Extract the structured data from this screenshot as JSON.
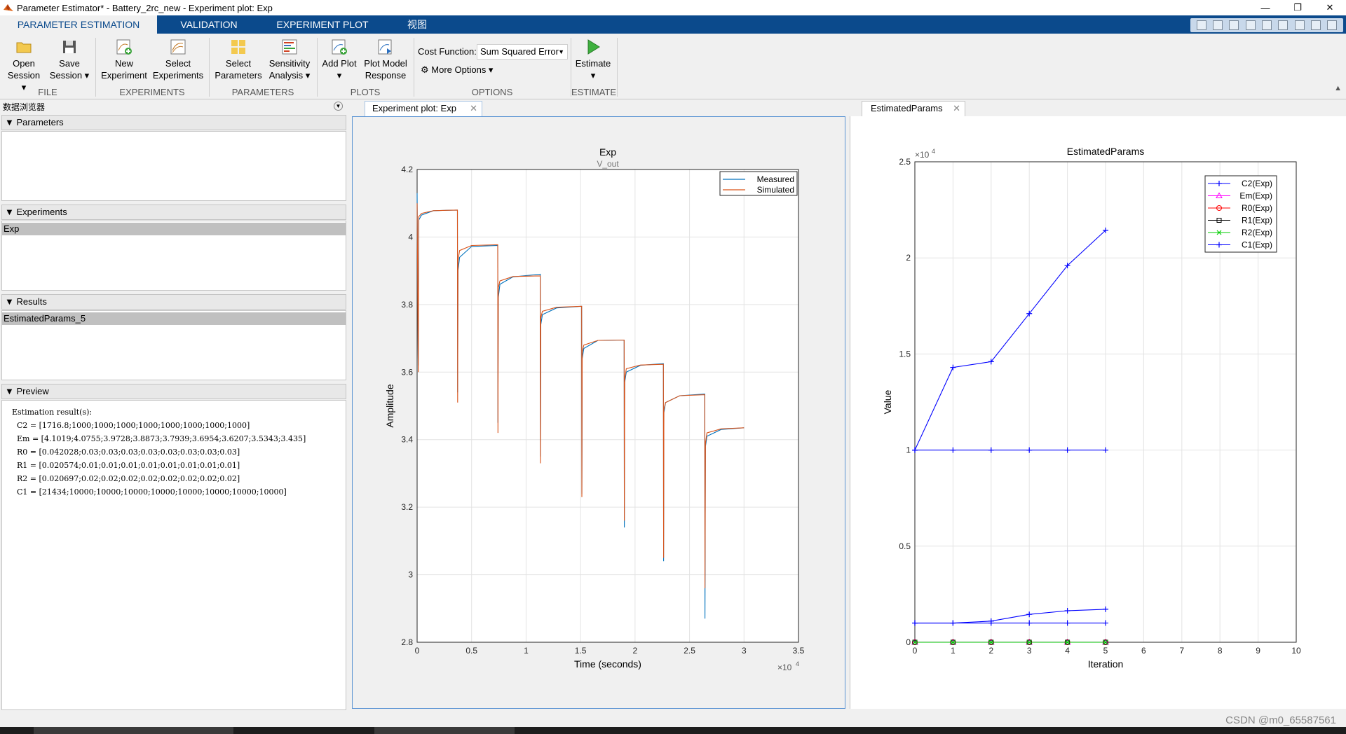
{
  "window": {
    "title": "Parameter Estimator* - Battery_2rc_new - Experiment plot: Exp",
    "minimize": "—",
    "maximize": "❐",
    "close": "✕"
  },
  "tabs": [
    "PARAMETER ESTIMATION",
    "VALIDATION",
    "EXPERIMENT PLOT",
    "视图"
  ],
  "ribbon": {
    "open": [
      "Open",
      "Session ▾"
    ],
    "save": [
      "Save",
      "Session ▾"
    ],
    "new_exp": [
      "New",
      "Experiment"
    ],
    "select_exp": [
      "Select",
      "Experiments"
    ],
    "select_params": [
      "Select",
      "Parameters"
    ],
    "sensitivity": [
      "Sensitivity",
      "Analysis ▾"
    ],
    "add_plot": [
      "Add Plot",
      "▾"
    ],
    "plot_model": [
      "Plot Model",
      "Response"
    ],
    "cost_label": "Cost Function:",
    "cost_value": "Sum Squared Error",
    "more_options": "More Options ▾",
    "estimate": [
      "Estimate",
      "▾"
    ],
    "groups": [
      "FILE",
      "EXPERIMENTS",
      "PARAMETERS",
      "PLOTS",
      "OPTIONS",
      "ESTIMATE"
    ]
  },
  "browser": {
    "title": "数据浏览器",
    "parameters_header": "Parameters",
    "experiments_header": "Experiments",
    "experiments": [
      "Exp"
    ],
    "results_header": "Results",
    "results": [
      "EstimatedParams_5"
    ],
    "preview_header": "Preview",
    "preview_lines": [
      "Estimation result(s):",
      "  C2 = [1716.8;1000;1000;1000;1000;1000;1000;1000;1000]",
      "  Em = [4.1019;4.0755;3.9728;3.8873;3.7939;3.6954;3.6207;3.5343;3.435]",
      "  R0 = [0.042028;0.03;0.03;0.03;0.03;0.03;0.03;0.03;0.03]",
      "  R1 = [0.020574;0.01;0.01;0.01;0.01;0.01;0.01;0.01;0.01]",
      "  R2 = [0.020697;0.02;0.02;0.02;0.02;0.02;0.02;0.02;0.02]",
      "  C1 = [21434;10000;10000;10000;10000;10000;10000;10000;10000]"
    ]
  },
  "doc_tabs": {
    "center": "Experiment plot: Exp",
    "right": "EstimatedParams",
    "close": "✕"
  },
  "chart_data": [
    {
      "type": "line",
      "title": "Exp",
      "subtitle": "V_out",
      "xlabel": "Time (seconds)",
      "ylabel": "Amplitude",
      "x_exponent": "×10",
      "x_exponent_power": "4",
      "xlim": [
        0,
        35000
      ],
      "ylim": [
        2.8,
        4.2
      ],
      "xticks": [
        0,
        5000,
        10000,
        15000,
        20000,
        25000,
        30000,
        35000
      ],
      "xtick_labels": [
        "0",
        "0.5",
        "1",
        "1.5",
        "2",
        "2.5",
        "3",
        "3.5"
      ],
      "yticks": [
        2.8,
        3.0,
        3.2,
        3.4,
        3.6,
        3.8,
        4.0,
        4.2
      ],
      "ytick_labels": [
        "2.8",
        "3",
        "3.2",
        "3.4",
        "3.6",
        "3.8",
        "4",
        "4.2"
      ],
      "grid": true,
      "legend_position": "top-right",
      "colors": {
        "Measured": "#0072bd",
        "Simulated": "#d95319"
      },
      "series": [
        {
          "name": "Measured",
          "x": [
            0,
            100,
            150,
            400,
            1500,
            3700,
            3720,
            3750,
            3900,
            5000,
            7400,
            7420,
            7450,
            7600,
            8800,
            11300,
            11320,
            11350,
            11500,
            12800,
            15100,
            15120,
            15150,
            15300,
            16600,
            19000,
            19020,
            19050,
            19200,
            20500,
            22600,
            22620,
            22650,
            22800,
            24100,
            26400,
            26420,
            26460,
            26600,
            27900,
            30000
          ],
          "y": [
            4.13,
            3.62,
            4.05,
            4.065,
            4.078,
            4.08,
            3.54,
            3.9,
            3.94,
            3.972,
            3.975,
            3.45,
            3.82,
            3.86,
            3.882,
            3.89,
            3.35,
            3.74,
            3.77,
            3.79,
            3.795,
            3.24,
            3.64,
            3.67,
            3.694,
            3.695,
            3.14,
            3.57,
            3.6,
            3.62,
            3.625,
            3.04,
            3.48,
            3.51,
            3.53,
            3.535,
            2.87,
            3.38,
            3.41,
            3.43,
            3.435
          ]
        },
        {
          "name": "Simulated",
          "x": [
            0,
            100,
            150,
            400,
            1500,
            3700,
            3720,
            3750,
            3900,
            5000,
            7400,
            7420,
            7450,
            7600,
            8800,
            11300,
            11320,
            11350,
            11500,
            12800,
            15100,
            15120,
            15150,
            15300,
            16600,
            19000,
            19020,
            19050,
            19200,
            20500,
            22600,
            22620,
            22650,
            22800,
            24100,
            26400,
            26420,
            26460,
            26600,
            27900,
            30000
          ],
          "y": [
            4.1,
            3.6,
            4.06,
            4.07,
            4.078,
            4.08,
            3.51,
            3.93,
            3.96,
            3.975,
            3.977,
            3.42,
            3.85,
            3.87,
            3.883,
            3.885,
            3.33,
            3.76,
            3.78,
            3.792,
            3.795,
            3.23,
            3.66,
            3.68,
            3.694,
            3.695,
            3.16,
            3.58,
            3.61,
            3.621,
            3.623,
            3.05,
            3.49,
            3.51,
            3.53,
            3.533,
            2.96,
            3.39,
            3.42,
            3.432,
            3.435
          ]
        }
      ]
    },
    {
      "type": "line",
      "title": "EstimatedParams",
      "xlabel": "Iteration",
      "ylabel": "Value",
      "y_exponent": "×10",
      "y_exponent_power": "4",
      "xlim": [
        0,
        10
      ],
      "ylim": [
        0,
        25000
      ],
      "xticks": [
        0,
        1,
        2,
        3,
        4,
        5,
        6,
        7,
        8,
        9,
        10
      ],
      "xtick_labels": [
        "0",
        "1",
        "2",
        "3",
        "4",
        "5",
        "6",
        "7",
        "8",
        "9",
        "10"
      ],
      "yticks": [
        0,
        5000,
        10000,
        15000,
        20000,
        25000
      ],
      "ytick_labels": [
        "0",
        "0.5",
        "1",
        "1.5",
        "2",
        "2.5"
      ],
      "grid": true,
      "legend_position": "top-right",
      "series": [
        {
          "name": "C2(Exp)",
          "color": "#0000ff",
          "marker": "+",
          "x": [
            0,
            1,
            2,
            3,
            4,
            5
          ],
          "y": [
            1000,
            1000,
            1100,
            1450,
            1640,
            1717
          ]
        },
        {
          "name": "Em(Exp)",
          "color": "#ff00ff",
          "marker": "triangle",
          "x": [
            0,
            1,
            2,
            3,
            4,
            5
          ],
          "y": [
            4.1,
            4.1,
            4.1,
            4.1,
            4.1,
            4.1
          ]
        },
        {
          "name": "R0(Exp)",
          "color": "#ff0000",
          "marker": "circle",
          "x": [
            0,
            1,
            2,
            3,
            4,
            5
          ],
          "y": [
            0.03,
            0.03,
            0.035,
            0.04,
            0.042,
            0.042
          ]
        },
        {
          "name": "R1(Exp)",
          "color": "#000000",
          "marker": "square",
          "x": [
            0,
            1,
            2,
            3,
            4,
            5
          ],
          "y": [
            0.01,
            0.01,
            0.015,
            0.02,
            0.02,
            0.0206
          ]
        },
        {
          "name": "R2(Exp)",
          "color": "#00cc00",
          "marker": "x",
          "x": [
            0,
            1,
            2,
            3,
            4,
            5
          ],
          "y": [
            0.02,
            0.02,
            0.02,
            0.02,
            0.02,
            0.0207
          ]
        },
        {
          "name": "C1(Exp)",
          "color": "#0000ff",
          "marker": "+",
          "x": [
            0,
            1,
            2,
            3,
            4,
            5
          ],
          "y": [
            10000,
            14300,
            14600,
            17100,
            19600,
            21434
          ]
        },
        {
          "name": "",
          "color": "#0000ff",
          "marker": "+",
          "x": [
            0,
            1,
            2,
            3,
            4,
            5
          ],
          "y": [
            10000,
            10000,
            10000,
            10000,
            10000,
            10000
          ]
        },
        {
          "name": "",
          "color": "#0000ff",
          "marker": "+",
          "x": [
            0,
            1,
            2,
            3,
            4,
            5
          ],
          "y": [
            1000,
            1000,
            1000,
            1000,
            1000,
            1000
          ]
        }
      ]
    }
  ],
  "watermark": "CSDN @m0_65587561"
}
